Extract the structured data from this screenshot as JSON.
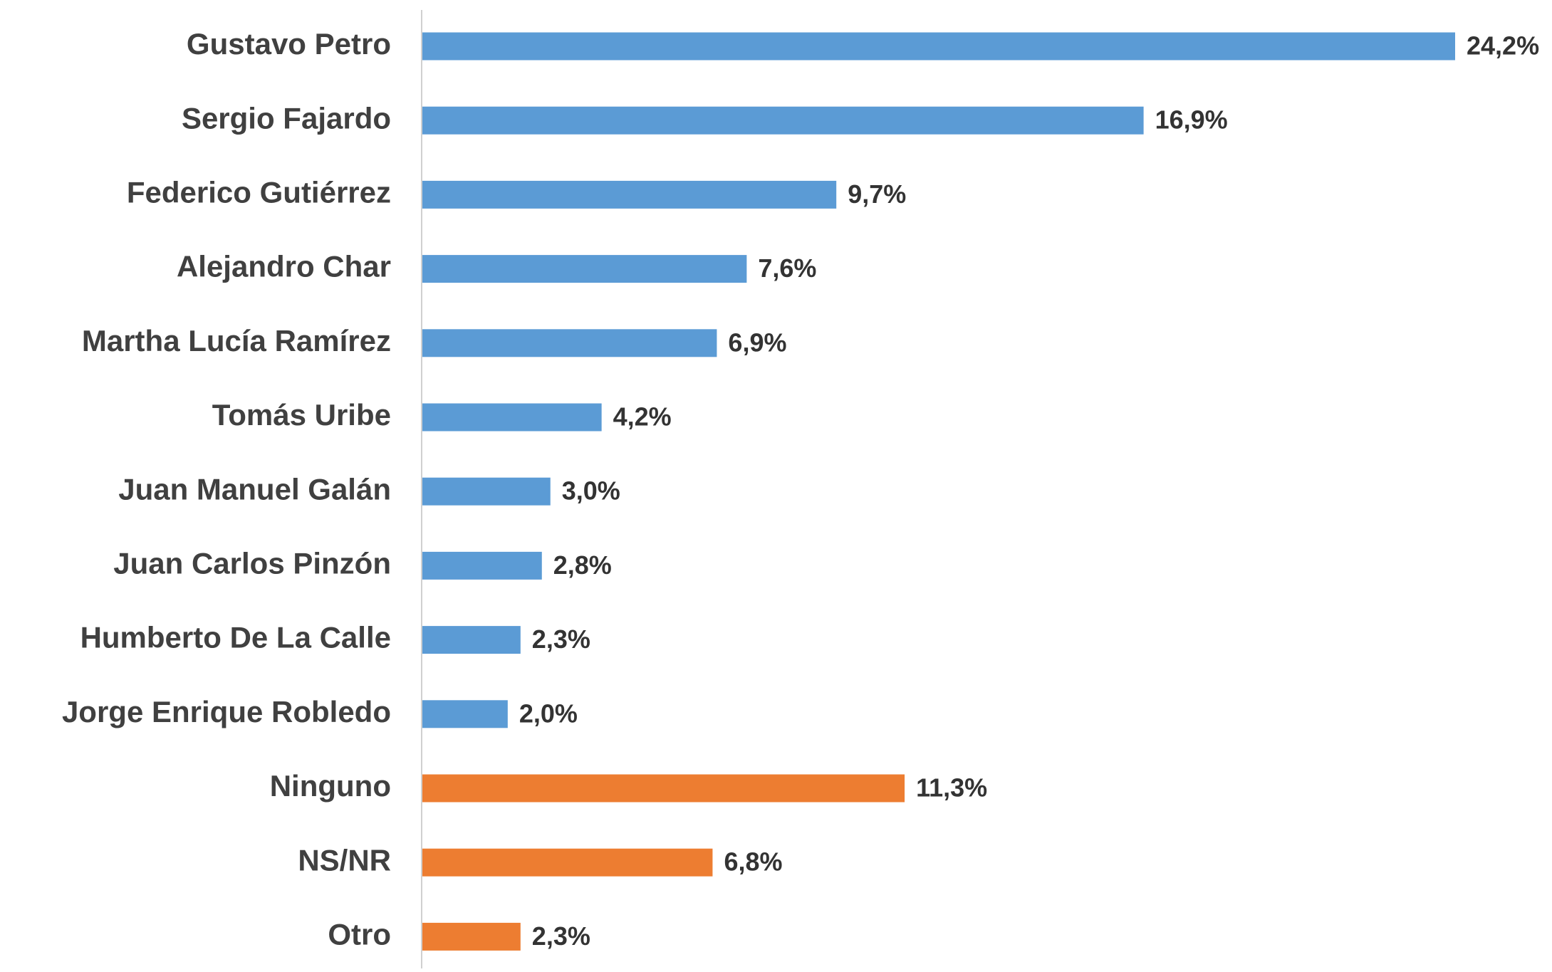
{
  "chart_data": {
    "type": "bar",
    "orientation": "horizontal",
    "categories": [
      "Gustavo Petro",
      "Sergio Fajardo",
      "Federico Gutiérrez",
      "Alejandro Char",
      "Martha Lucía Ramírez",
      "Tomás Uribe",
      "Juan Manuel Galán",
      "Juan Carlos Pinzón",
      "Humberto De La Calle",
      "Jorge Enrique Robledo",
      "Ninguno",
      "NS/NR",
      "Otro"
    ],
    "values": [
      24.2,
      16.9,
      9.7,
      7.6,
      6.9,
      4.2,
      3.0,
      2.8,
      2.3,
      2.0,
      11.3,
      6.8,
      2.3
    ],
    "value_labels": [
      "24,2%",
      "16,9%",
      "9,7%",
      "7,6%",
      "6,9%",
      "4,2%",
      "3,0%",
      "2,8%",
      "2,3%",
      "2,0%",
      "11,3%",
      "6,8%",
      "2,3%"
    ],
    "colors": [
      "#5b9bd5",
      "#5b9bd5",
      "#5b9bd5",
      "#5b9bd5",
      "#5b9bd5",
      "#5b9bd5",
      "#5b9bd5",
      "#5b9bd5",
      "#5b9bd5",
      "#5b9bd5",
      "#ed7d31",
      "#ed7d31",
      "#ed7d31"
    ]
  }
}
